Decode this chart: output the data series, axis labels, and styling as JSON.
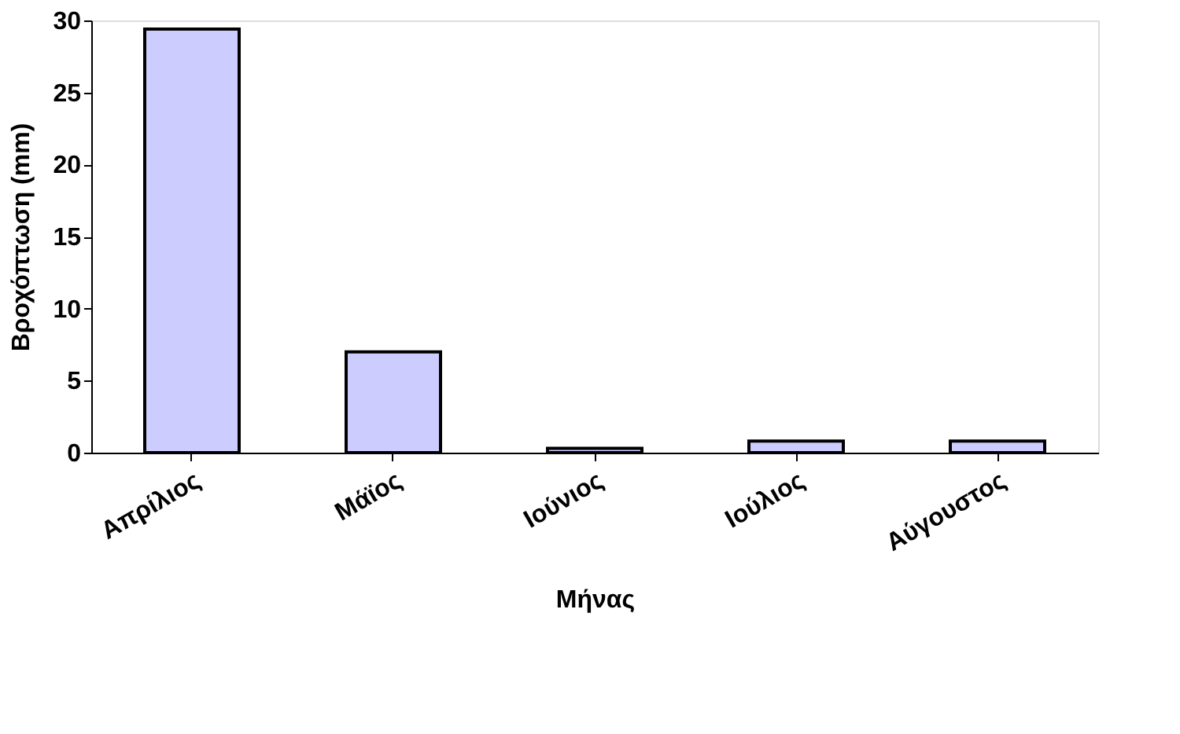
{
  "chart_data": {
    "type": "bar",
    "xlabel": "Μήνας",
    "ylabel": "Βροχόπτωση (mm)",
    "categories": [
      "Απρίλιος",
      "Μάϊος",
      "Ιούνιος",
      "Ιούλιος",
      "Αύγουστος"
    ],
    "series": [
      {
        "color": "#ccccff",
        "values": [
          29.4,
          7.0,
          0.3,
          0.8,
          0.8
        ]
      }
    ],
    "ylim": [
      0,
      30
    ],
    "yticks": [
      0,
      5,
      10,
      15,
      20,
      25,
      30
    ],
    "grid": false,
    "legend": false
  }
}
